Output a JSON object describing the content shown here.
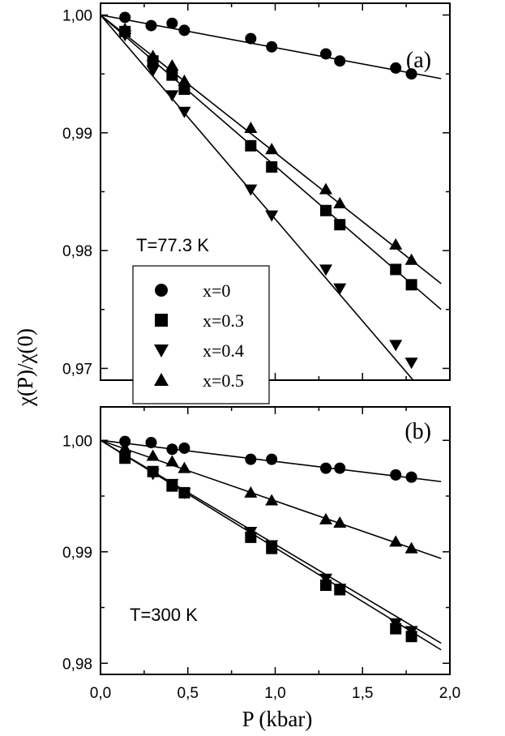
{
  "chart_data": [
    {
      "type": "scatter",
      "panel_label": "(a)",
      "annotation": "T=77.3 K",
      "xlim": [
        0.0,
        2.0
      ],
      "ylim": [
        0.969,
        1.001
      ],
      "yticks": [
        0.97,
        0.98,
        0.99,
        1.0
      ],
      "ytick_labels": [
        "0,97",
        "0,98",
        "0,99",
        "1,00"
      ],
      "legend_title": "",
      "series": [
        {
          "name": "x=0",
          "marker": "circle",
          "x": [
            0.14,
            0.29,
            0.41,
            0.48,
            0.86,
            0.98,
            1.29,
            1.37,
            1.69,
            1.78
          ],
          "y": [
            0.9998,
            0.9991,
            0.9993,
            0.9987,
            0.998,
            0.9973,
            0.9967,
            0.9961,
            0.9955,
            0.995
          ],
          "fit": [
            [
              0.0,
              1.0
            ],
            [
              1.95,
              0.9946
            ]
          ]
        },
        {
          "name": "x=0.3",
          "marker": "square",
          "x": [
            0.14,
            0.3,
            0.41,
            0.48,
            0.86,
            0.98,
            1.29,
            1.37,
            1.69,
            1.78
          ],
          "y": [
            0.9986,
            0.9961,
            0.9949,
            0.9937,
            0.9889,
            0.9871,
            0.9834,
            0.9822,
            0.9784,
            0.9771
          ],
          "fit": [
            [
              0.0,
              1.0
            ],
            [
              1.95,
              0.975
            ]
          ]
        },
        {
          "name": "x=0.4",
          "marker": "triangle-down",
          "x": [
            0.14,
            0.3,
            0.41,
            0.48,
            0.86,
            0.98,
            1.29,
            1.37,
            1.69,
            1.78
          ],
          "y": [
            0.9983,
            0.9953,
            0.9932,
            0.9918,
            0.9852,
            0.983,
            0.9784,
            0.9768,
            0.972,
            0.9705
          ],
          "fit": [
            [
              0.0,
              1.0
            ],
            [
              1.79,
              0.969
            ]
          ]
        },
        {
          "name": "x=0.5",
          "marker": "triangle-up",
          "x": [
            0.14,
            0.3,
            0.41,
            0.48,
            0.86,
            0.98,
            1.29,
            1.37,
            1.69,
            1.78
          ],
          "y": [
            0.9988,
            0.9965,
            0.9957,
            0.9944,
            0.9904,
            0.9886,
            0.9852,
            0.984,
            0.9805,
            0.9792
          ],
          "fit": [
            [
              0.0,
              1.0
            ],
            [
              1.95,
              0.9772
            ]
          ]
        }
      ]
    },
    {
      "type": "scatter",
      "panel_label": "(b)",
      "annotation": "T=300 K",
      "xlim": [
        0.0,
        2.0
      ],
      "xticks": [
        0.0,
        0.5,
        1.0,
        1.5,
        2.0
      ],
      "xtick_labels": [
        "0,0",
        "0,5",
        "1,0",
        "1,5",
        "2,0"
      ],
      "xlabel": "P (kbar)",
      "ylim": [
        0.979,
        1.003
      ],
      "yticks": [
        0.98,
        0.99,
        1.0
      ],
      "ytick_labels": [
        "0,98",
        "0,99",
        "1,00"
      ],
      "series": [
        {
          "name": "x=0",
          "marker": "circle",
          "x": [
            0.14,
            0.29,
            0.41,
            0.48,
            0.86,
            0.98,
            1.29,
            1.37,
            1.69,
            1.78
          ],
          "y": [
            0.9999,
            0.9998,
            0.9992,
            0.9993,
            0.9983,
            0.9983,
            0.9975,
            0.9975,
            0.9969,
            0.9967
          ],
          "fit": [
            [
              0.0,
              1.0
            ],
            [
              1.95,
              0.9963
            ]
          ]
        },
        {
          "name": "x=0.3",
          "marker": "square",
          "x": [
            0.14,
            0.3,
            0.41,
            0.48,
            0.86,
            0.98,
            1.29,
            1.37,
            1.69,
            1.78
          ],
          "y": [
            0.9984,
            0.9972,
            0.9959,
            0.9953,
            0.9913,
            0.9903,
            0.987,
            0.9866,
            0.9831,
            0.9824
          ],
          "fit": [
            [
              0.0,
              1.0
            ],
            [
              1.95,
              0.9812
            ]
          ]
        },
        {
          "name": "x=0.4",
          "marker": "triangle-down",
          "x": [
            0.14,
            0.3,
            0.41,
            0.48,
            0.86,
            0.98,
            1.29,
            1.37,
            1.69,
            1.78
          ],
          "y": [
            0.9986,
            0.997,
            0.9961,
            0.9953,
            0.9918,
            0.9906,
            0.9876,
            0.9867,
            0.9836,
            0.9829
          ],
          "fit": [
            [
              0.0,
              1.0
            ],
            [
              1.95,
              0.9818
            ]
          ]
        },
        {
          "name": "x=0.5",
          "marker": "triangle-up",
          "x": [
            0.14,
            0.3,
            0.41,
            0.48,
            0.86,
            0.98,
            1.29,
            1.37,
            1.69,
            1.78
          ],
          "y": [
            0.9993,
            0.9986,
            0.9981,
            0.9975,
            0.9953,
            0.9946,
            0.9929,
            0.9926,
            0.9909,
            0.9903
          ],
          "fit": [
            [
              0.0,
              1.0
            ],
            [
              1.95,
              0.9894
            ]
          ]
        }
      ]
    }
  ],
  "ylabel_parts": [
    "χ(P)/χ(0)"
  ],
  "legend": {
    "entries": [
      "x=0",
      "x=0.3",
      "x=0.4",
      "x=0.5"
    ],
    "markers": [
      "circle",
      "square",
      "triangle-down",
      "triangle-up"
    ]
  }
}
